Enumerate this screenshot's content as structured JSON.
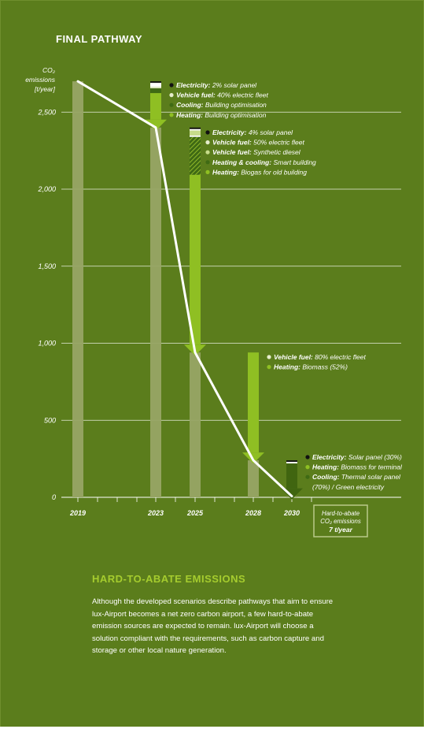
{
  "title": "FINAL PATHWAY",
  "colors": {
    "background": "#5b7d1c",
    "bar": "#98a565",
    "arrow": "#8fbf23",
    "arrow_dark": "#406510",
    "hard_box_border": "#b9c98a",
    "text": "#ffffff",
    "accent": "#a5cc2e"
  },
  "chart_data": {
    "type": "bar",
    "y_label_lines": [
      "CO₂",
      "emissions",
      "[t/year]"
    ],
    "y_ticks": [
      0,
      500,
      1000,
      1500,
      2000,
      2500
    ],
    "y_tick_labels": [
      "0",
      "500",
      "1,000",
      "1,500",
      "2,000",
      "2,500"
    ],
    "ylim": [
      0,
      2750
    ],
    "grid": true,
    "categories": [
      "2019",
      "2023",
      "2025",
      "2028",
      "2030"
    ],
    "values": [
      2700,
      2400,
      940,
      240,
      7
    ],
    "pathway_line": [
      {
        "x": "2019",
        "y": 2700
      },
      {
        "x": "2023",
        "y": 2400
      },
      {
        "x": "2025",
        "y": 940
      },
      {
        "x": "2028",
        "y": 240
      },
      {
        "x": "2030",
        "y": 7
      }
    ],
    "reductions": [
      {
        "from_year": "2019",
        "to_year": "2023",
        "from": 2700,
        "to": 2400,
        "measures": [
          {
            "label": "Electricity:",
            "detail": "2% solar panel",
            "color": "#111111"
          },
          {
            "label": "Vehicle fuel:",
            "detail": "40% electric fleet",
            "color": "#e6edcc"
          },
          {
            "label": "Cooling:",
            "detail": "Building optimisation",
            "color": "#3f6a14"
          },
          {
            "label": "Heating:",
            "detail": "Building optimisation",
            "color": "#8fbf23"
          }
        ]
      },
      {
        "from_year": "2023",
        "to_year": "2025",
        "from": 2400,
        "to": 940,
        "measures": [
          {
            "label": "Electricity:",
            "detail": "4% solar panel",
            "color": "#111111"
          },
          {
            "label": "Vehicle fuel:",
            "detail": "50% electric fleet",
            "color": "#e6edcc"
          },
          {
            "label": "Vehicle fuel:",
            "detail": "Synthetic diesel",
            "color": "#c7dc8a"
          },
          {
            "label": "Heating & cooling:",
            "detail": "Smart building",
            "color": "#3f6a14"
          },
          {
            "label": "Heating:",
            "detail": "Biogas for old building",
            "color": "#8fbf23"
          }
        ]
      },
      {
        "from_year": "2025",
        "to_year": "2028",
        "from": 940,
        "to": 240,
        "measures": [
          {
            "label": "Vehicle fuel:",
            "detail": "80% electric fleet",
            "color": "#e6edcc"
          },
          {
            "label": "Heating:",
            "detail": "Biomass (52%)",
            "color": "#8fbf23"
          }
        ]
      },
      {
        "from_year": "2028",
        "to_year": "2030",
        "from": 240,
        "to": 7,
        "measures": [
          {
            "label": "Electricity:",
            "detail": "Solar panel (30%)",
            "color": "#111111"
          },
          {
            "label": "Heating:",
            "detail": "Biomass for terminal",
            "color": "#8fbf23"
          },
          {
            "label": "Cooling:",
            "detail": "Thermal solar panel",
            "color": "#3f6a14"
          },
          {
            "label": "",
            "detail": "(70%) / Green electricity",
            "color": ""
          }
        ]
      }
    ],
    "hard_to_abate": {
      "lines": [
        "Hard-to-abate",
        "CO₂ emissions"
      ],
      "value_label": "7 t/year",
      "value": 7
    }
  },
  "section": {
    "title": "HARD-TO-ABATE EMISSIONS",
    "body": "Although the developed scenarios describe pathways that aim to ensure lux-Airport becomes a net zero carbon airport, a few hard-to-abate emission sources are expected to remain. lux-Airport will choose a solution compliant with the requirements, such as carbon capture and storage or other local nature generation."
  }
}
